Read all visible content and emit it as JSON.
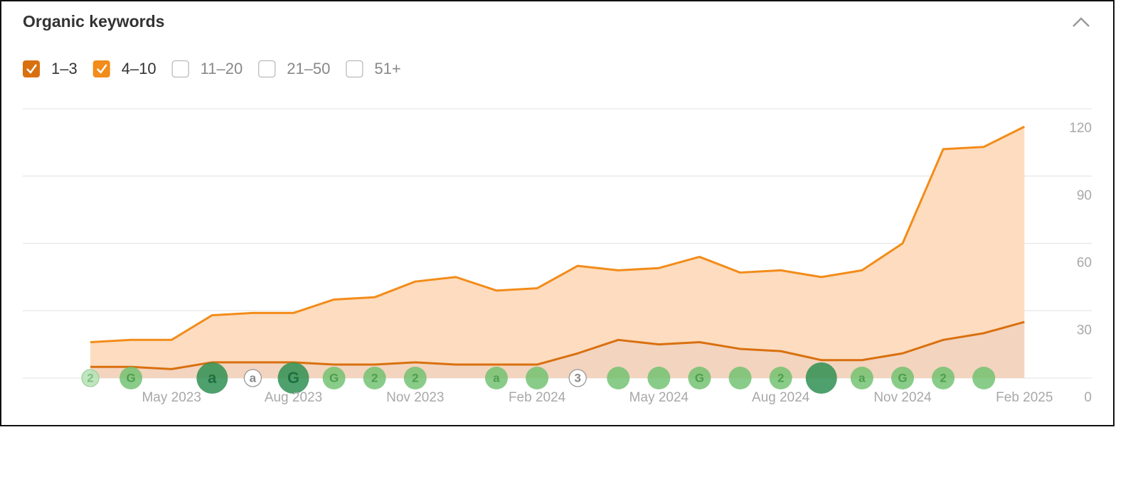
{
  "chart_data": {
    "type": "stacked-area",
    "title": "Organic keywords",
    "categories": [
      null,
      null,
      "May 2023",
      null,
      null,
      "Aug 2023",
      null,
      null,
      "Nov 2023",
      null,
      null,
      "Feb 2024",
      null,
      null,
      "May 2024",
      null,
      null,
      "Aug 2024",
      null,
      null,
      "Nov 2024",
      null,
      null,
      "Feb 2025"
    ],
    "series": [
      {
        "name": "1–3",
        "color": "#d9700f",
        "checked": true,
        "values": [
          5,
          5,
          4,
          7,
          7,
          7,
          6,
          6,
          7,
          6,
          6,
          6,
          11,
          17,
          15,
          16,
          13,
          12,
          8,
          8,
          11,
          17,
          20,
          25
        ]
      },
      {
        "name": "4–10",
        "color": "#f28c1a",
        "checked": true,
        "values": [
          11,
          12,
          13,
          21,
          22,
          22,
          29,
          30,
          36,
          39,
          33,
          34,
          39,
          31,
          34,
          38,
          34,
          36,
          37,
          40,
          49,
          85,
          83,
          87
        ]
      }
    ],
    "hidden_series": [
      {
        "name": "11–20"
      },
      {
        "name": "21–50"
      },
      {
        "name": "51+"
      }
    ],
    "ylim": [
      0,
      120
    ],
    "yticks": [
      0,
      30,
      60,
      90,
      120
    ],
    "grid": true,
    "markers": [
      {
        "label": "2",
        "style": "light",
        "size": "small"
      },
      {
        "label": "G",
        "style": "normal",
        "size": "small"
      },
      null,
      {
        "label": "a",
        "style": "dark",
        "size": "large"
      },
      {
        "label": "a",
        "style": "outline",
        "size": "small"
      },
      {
        "label": "G",
        "style": "dark",
        "size": "large"
      },
      {
        "label": "G",
        "style": "normal",
        "size": "small"
      },
      {
        "label": "2",
        "style": "normal",
        "size": "small"
      },
      {
        "label": "2",
        "style": "normal",
        "size": "small"
      },
      null,
      {
        "label": "a",
        "style": "normal",
        "size": "small"
      },
      {
        "style": "normal",
        "size": "small"
      },
      {
        "label": "3",
        "style": "outline",
        "size": "small"
      },
      {
        "style": "normal",
        "size": "small"
      },
      {
        "style": "normal",
        "size": "small"
      },
      {
        "label": "G",
        "style": "normal",
        "size": "small"
      },
      {
        "style": "normal",
        "size": "small"
      },
      {
        "label": "2",
        "style": "normal",
        "size": "small"
      },
      {
        "style": "dark",
        "size": "large"
      },
      {
        "label": "a",
        "style": "normal",
        "size": "small"
      },
      {
        "label": "G",
        "style": "normal",
        "size": "small"
      },
      {
        "label": "2",
        "style": "normal",
        "size": "small"
      },
      {
        "style": "normal",
        "size": "small"
      },
      null
    ]
  }
}
